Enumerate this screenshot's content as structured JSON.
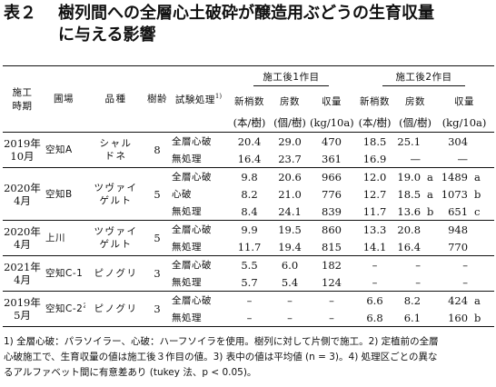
{
  "title": {
    "number": "表２",
    "line1": "樹列間への全層心土破砕が醸造用ぶどうの生育収量",
    "line2": "に与える影響"
  },
  "headers": {
    "period_l1": "施工",
    "period_l2": "時期",
    "farm": "圃場",
    "variety": "品種",
    "age": "樹齢",
    "treatment": "試験処理",
    "treatment_sup": "1)",
    "year1": "施工後1作目",
    "year2": "施工後2作目",
    "shoots": "新梢数",
    "clusters": "房数",
    "yield": "収量",
    "unit_shoots": "(本/樹)",
    "unit_clusters": "(個/樹)",
    "unit_yield": "(kg/10a)"
  },
  "groups": [
    {
      "period": [
        "2019年",
        "10月"
      ],
      "farm": "空知A",
      "farm_sup": "",
      "variety": [
        "シャル",
        "ドネ"
      ],
      "age": "8",
      "rows": [
        {
          "treatment": "全層心破",
          "y1": [
            "20.4",
            "29.0",
            "470"
          ],
          "y2": [
            "18.5",
            "25.1",
            "304"
          ],
          "letters": [
            "",
            ""
          ]
        },
        {
          "treatment": "無処理",
          "y1": [
            "16.4",
            "23.7",
            "361"
          ],
          "y2": [
            "16.9",
            "—",
            "—"
          ],
          "letters": [
            "",
            ""
          ]
        }
      ]
    },
    {
      "period": [
        "2020年",
        "4月"
      ],
      "farm": "空知B",
      "farm_sup": "",
      "variety": [
        "ツヴァイ",
        "ゲルト"
      ],
      "age": "5",
      "rows": [
        {
          "treatment": "全層心破",
          "y1": [
            "9.8",
            "20.6",
            "966"
          ],
          "y2": [
            "12.0",
            "19.0",
            "1489"
          ],
          "letters": [
            "a",
            "a"
          ]
        },
        {
          "treatment": "心破",
          "y1": [
            "8.2",
            "21.0",
            "776"
          ],
          "y2": [
            "12.7",
            "18.5",
            "1073"
          ],
          "letters": [
            "a",
            "b"
          ]
        },
        {
          "treatment": "無処理",
          "y1": [
            "8.4",
            "24.1",
            "839"
          ],
          "y2": [
            "11.7",
            "13.6",
            "651"
          ],
          "letters": [
            "b",
            "c"
          ]
        }
      ]
    },
    {
      "period": [
        "2020年",
        "4月"
      ],
      "farm": "上川",
      "farm_sup": "",
      "variety": [
        "ツヴァイ",
        "ゲルト"
      ],
      "age": "5",
      "rows": [
        {
          "treatment": "全層心破",
          "y1": [
            "9.9",
            "19.5",
            "860"
          ],
          "y2": [
            "13.3",
            "20.8",
            "948"
          ],
          "letters": [
            "",
            ""
          ]
        },
        {
          "treatment": "無処理",
          "y1": [
            "11.7",
            "19.4",
            "815"
          ],
          "y2": [
            "14.1",
            "16.4",
            "770"
          ],
          "letters": [
            "",
            ""
          ]
        }
      ]
    },
    {
      "period": [
        "2021年",
        "4月"
      ],
      "farm": "空知C-1",
      "farm_sup": "",
      "variety": [
        "ピノグリ",
        ""
      ],
      "age": "3",
      "rows": [
        {
          "treatment": "全層心破",
          "y1": [
            "5.5",
            "6.0",
            "182"
          ],
          "y2": [
            "–",
            "–",
            "–"
          ],
          "letters": [
            "",
            ""
          ]
        },
        {
          "treatment": "無処理",
          "y1": [
            "5.7",
            "5.4",
            "124"
          ],
          "y2": [
            "–",
            "–",
            "–"
          ],
          "letters": [
            "",
            ""
          ]
        }
      ]
    },
    {
      "period": [
        "2019年",
        "5月"
      ],
      "farm": "空知C-2",
      "farm_sup": "2)",
      "variety": [
        "ピノグリ",
        ""
      ],
      "age": "3",
      "rows": [
        {
          "treatment": "全層心破",
          "y1": [
            "–",
            "–",
            "–"
          ],
          "y2": [
            "6.6",
            "8.2",
            "424"
          ],
          "letters": [
            "",
            "a"
          ]
        },
        {
          "treatment": "無処理",
          "y1": [
            "–",
            "–",
            "–"
          ],
          "y2": [
            "6.8",
            "6.1",
            "160"
          ],
          "letters": [
            "",
            "b"
          ]
        }
      ]
    }
  ],
  "notes": [
    "1) 全層心破：パラソイラー、心破：ハーフソイラを使用。樹列に対して片側で施工。2) 定植前の全層",
    "心破施工で、生育収量の値は施工後３作目の値。3) 表中の値は平均値 (n = 3)。4) 処理区ごとの異な",
    "るアルファベット間に有意差あり (tukey 法、p < 0.05)。"
  ]
}
